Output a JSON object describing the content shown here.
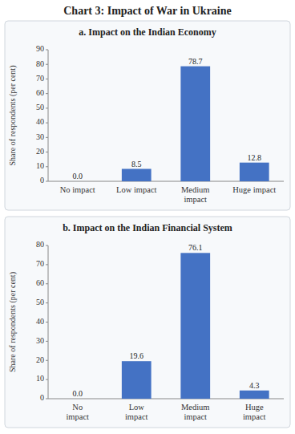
{
  "title": "Chart 3: Impact of War in Ukraine",
  "chart_data": [
    {
      "type": "bar",
      "title": "a. Impact on the Indian Economy",
      "categories": [
        "No impact",
        "Low impact",
        "Medium\nimpact",
        "Huge impact"
      ],
      "values": [
        0.0,
        8.5,
        78.7,
        12.8
      ],
      "value_labels": [
        "0.0",
        "8.5",
        "78.7",
        "12.8"
      ],
      "data_labels": true,
      "color": "#4472C4",
      "y_label": "Share of respondents (per cent)",
      "ylim": [
        0,
        90
      ],
      "yticks": [
        0,
        10,
        20,
        30,
        40,
        50,
        60,
        70,
        80,
        90
      ],
      "grid": false
    },
    {
      "type": "bar",
      "title": "b. Impact on the Indian Financial System",
      "categories": [
        "No\nimpact",
        "Low\nimpact",
        "Medium\nimpact",
        "Huge\nimpact"
      ],
      "values": [
        0.0,
        19.6,
        76.1,
        4.3
      ],
      "value_labels": [
        "0.0",
        "19.6",
        "76.1",
        "4.3"
      ],
      "data_labels": true,
      "color": "#4472C4",
      "y_label": "Share of respondents (per cent)",
      "ylim": [
        0,
        80
      ],
      "yticks": [
        0,
        10,
        20,
        30,
        40,
        50,
        60,
        70,
        80
      ],
      "grid": false
    }
  ]
}
